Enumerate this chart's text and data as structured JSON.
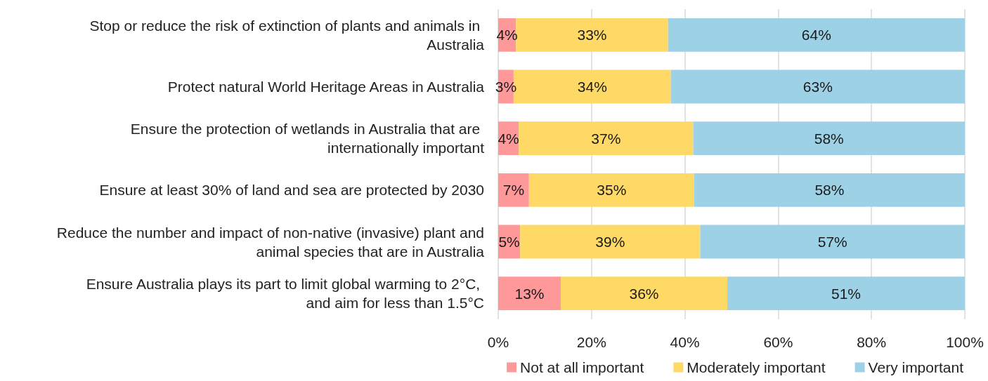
{
  "chart_data": {
    "type": "bar",
    "orientation": "horizontal",
    "stacked": true,
    "categories": [
      "Stop or reduce the risk of extinction of plants and animals in Australia",
      "Protect natural World Heritage Areas in Australia",
      "Ensure the protection of wetlands in Australia that are internationally important",
      "Ensure at least 30% of land and sea are protected by 2030",
      "Reduce the number and impact of non-native (invasive) plant and animal species that are in Australia",
      "Ensure Australia plays its part to limit global warming to 2°C, and aim for less than 1.5°C"
    ],
    "series": [
      {
        "name": "Not at all important",
        "color": "#ff9999",
        "values": [
          3.8,
          3.3,
          4.4,
          6.6,
          4.7,
          13.4
        ],
        "value_labels": [
          "4%",
          "3%",
          "4%",
          "7%",
          "5%",
          "13%"
        ]
      },
      {
        "name": "Moderately important",
        "color": "#ffd966",
        "values": [
          32.6,
          33.7,
          37.4,
          35.4,
          38.6,
          35.7
        ],
        "value_labels": [
          "33%",
          "34%",
          "37%",
          "35%",
          "39%",
          "36%"
        ]
      },
      {
        "name": "Very important",
        "color": "#9dd2e6",
        "values": [
          63.6,
          63.0,
          58.2,
          58.0,
          56.7,
          50.9
        ],
        "value_labels": [
          "64%",
          "63%",
          "58%",
          "58%",
          "57%",
          "51%"
        ]
      }
    ],
    "xlim": [
      0,
      100
    ],
    "xticks": [
      {
        "value": 0,
        "label": "0%"
      },
      {
        "value": 20,
        "label": "20%"
      },
      {
        "value": 40,
        "label": "40%"
      },
      {
        "value": 60,
        "label": "60%"
      },
      {
        "value": 80,
        "label": "80%"
      },
      {
        "value": 100,
        "label": "100%"
      }
    ],
    "grid": "x",
    "legend": "bottom"
  }
}
